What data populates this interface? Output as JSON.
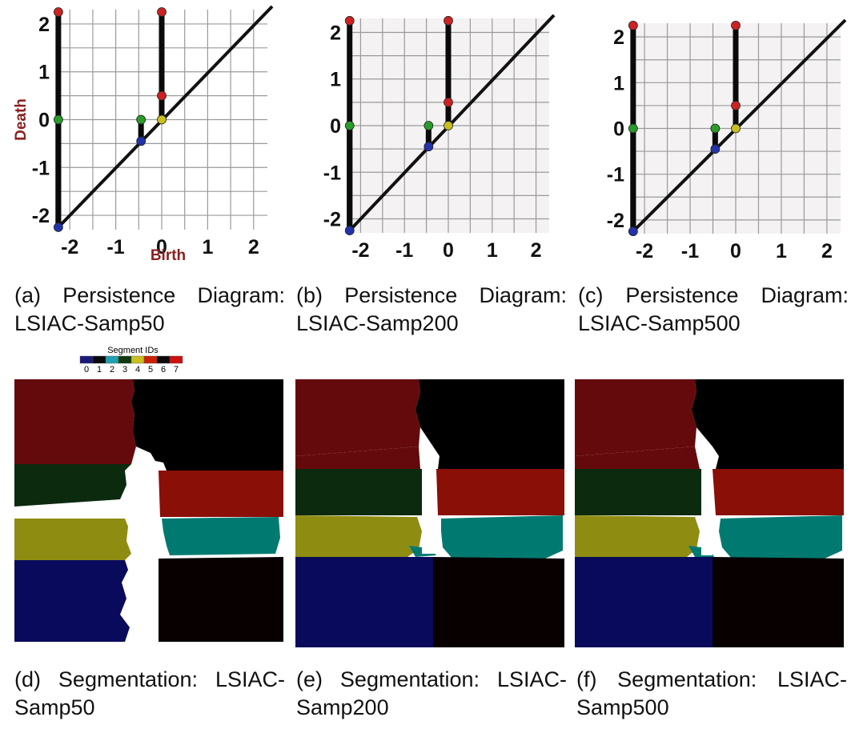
{
  "chart_data": [
    {
      "type": "scatter",
      "xlabel": "Birth",
      "ylabel": "Death",
      "xticks": [
        "-2",
        "-1",
        "0",
        "1",
        "2"
      ],
      "yticks": [
        "2",
        "1",
        "0",
        "-1",
        "-2"
      ],
      "xlim": [
        -2.3,
        2.3
      ],
      "ylim": [
        -2.3,
        2.3
      ],
      "grid": true,
      "diagonal": true,
      "pairs": [
        {
          "birth": -2.25,
          "death": 2.25,
          "color": "#cc2222"
        },
        {
          "birth": -2.25,
          "death": 0.0,
          "color": "#2a9a2a"
        },
        {
          "birth": -0.45,
          "death": 0.0,
          "color": "#2a9a2a"
        },
        {
          "birth": 0.0,
          "death": 0.5,
          "color": "#cc2222"
        },
        {
          "birth": 0.0,
          "death": 2.25,
          "color": "#cc2222"
        }
      ],
      "diagonal_points": [
        {
          "value": -2.25,
          "color": "#2233aa"
        },
        {
          "value": -0.45,
          "color": "#2233aa"
        },
        {
          "value": 0.0,
          "color": "#c8c020"
        }
      ]
    },
    {
      "type": "scatter",
      "xlabel": "",
      "ylabel": "",
      "xticks": [
        "-2",
        "-1",
        "0",
        "1",
        "2"
      ],
      "yticks": [
        "2",
        "1",
        "0",
        "-1",
        "-2"
      ],
      "xlim": [
        -2.3,
        2.3
      ],
      "ylim": [
        -2.3,
        2.3
      ],
      "grid": true,
      "diagonal": true,
      "pairs": [
        {
          "birth": -2.25,
          "death": 2.25,
          "color": "#cc2222"
        },
        {
          "birth": -2.25,
          "death": 0.0,
          "color": "#2a9a2a"
        },
        {
          "birth": -0.45,
          "death": 0.0,
          "color": "#2a9a2a"
        },
        {
          "birth": 0.0,
          "death": 0.5,
          "color": "#cc2222"
        },
        {
          "birth": 0.0,
          "death": 2.25,
          "color": "#cc2222"
        }
      ],
      "diagonal_points": [
        {
          "value": -2.25,
          "color": "#2233aa"
        },
        {
          "value": -0.45,
          "color": "#2233aa"
        },
        {
          "value": 0.0,
          "color": "#c8c020"
        }
      ]
    },
    {
      "type": "scatter",
      "xlabel": "",
      "ylabel": "",
      "xticks": [
        "-2",
        "-1",
        "0",
        "1",
        "2"
      ],
      "yticks": [
        "2",
        "1",
        "0",
        "-1",
        "-2"
      ],
      "xlim": [
        -2.3,
        2.3
      ],
      "ylim": [
        -2.3,
        2.3
      ],
      "grid": true,
      "diagonal": true,
      "pairs": [
        {
          "birth": -2.25,
          "death": 2.25,
          "color": "#cc2222"
        },
        {
          "birth": -2.25,
          "death": 0.0,
          "color": "#2a9a2a"
        },
        {
          "birth": -0.45,
          "death": 0.0,
          "color": "#2a9a2a"
        },
        {
          "birth": 0.0,
          "death": 0.5,
          "color": "#cc2222"
        },
        {
          "birth": 0.0,
          "death": 2.25,
          "color": "#cc2222"
        }
      ],
      "diagonal_points": [
        {
          "value": -2.25,
          "color": "#2233aa"
        },
        {
          "value": -0.45,
          "color": "#2233aa"
        },
        {
          "value": 0.0,
          "color": "#c8c020"
        }
      ]
    }
  ],
  "captions": {
    "a": {
      "line1": "(a) Persistence Diagram:",
      "line2": "LSIAC-Samp50"
    },
    "b": {
      "line1": "(b) Persistence Diagram:",
      "line2": "LSIAC-Samp200"
    },
    "c": {
      "line1": "(c) Persistence Diagram:",
      "line2": "LSIAC-Samp500"
    },
    "d": {
      "line1": "(d) Segmentation: LSIAC-",
      "line2": "Samp50"
    },
    "e": {
      "line1": "(e) Segmentation: LSIAC-",
      "line2": "Samp200"
    },
    "f": {
      "line1": "(f) Segmentation: LSIAC-",
      "line2": "Samp500"
    }
  },
  "legend": {
    "title": "Segment IDs",
    "labels": [
      "0",
      "1",
      "2",
      "3",
      "4",
      "5",
      "6",
      "7"
    ],
    "colors": [
      "#1a1a7a",
      "#0a0a0a",
      "#20a0b0",
      "#0e3a10",
      "#c8c020",
      "#cc2200",
      "#0a0a0a",
      "#cc1111"
    ]
  },
  "segment_colors": {
    "dark_red": "#650a0c",
    "black": "#000000",
    "dark_green": "#0b2a0e",
    "red": "#8a0f06",
    "olive": "#8f8c12",
    "teal": "#007a70",
    "navy": "#0a0a5c",
    "dark_brown": "#080000",
    "white": "#ffffff"
  }
}
